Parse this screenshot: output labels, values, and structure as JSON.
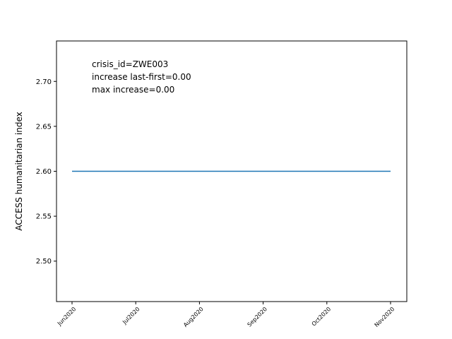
{
  "chart_data": {
    "type": "line",
    "ylabel": "ACCESS humanitarian index",
    "xlabel": "",
    "x": [
      "2020-06-01",
      "2020-07-01",
      "2020-08-01",
      "2020-09-01",
      "2020-10-01",
      "2020-11-01"
    ],
    "x_tick_labels": [
      "Jun2020",
      "Jul2020",
      "Aug2020",
      "Sep2020",
      "Oct2020",
      "Nov2020"
    ],
    "series": [
      {
        "values": [
          2.6,
          2.6,
          2.6,
          2.6,
          2.6,
          2.6
        ],
        "color": "#1f77b4"
      }
    ],
    "ylim": [
      2.455,
      2.745
    ],
    "y_ticks": [
      2.5,
      2.55,
      2.6,
      2.65,
      2.7
    ],
    "y_tick_labels": [
      "2.50",
      "2.55",
      "2.60",
      "2.65",
      "2.70"
    ],
    "annotations": [
      "crisis_id=ZWE003",
      "increase last-first=0.00",
      "max increase=0.00"
    ],
    "grid": false,
    "legend": "none"
  }
}
